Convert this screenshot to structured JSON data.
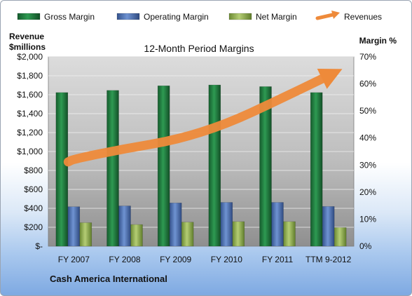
{
  "chart_data": {
    "type": "bar",
    "title": "12-Month Period Margins",
    "left_axis_title": [
      "Revenue",
      "$millions"
    ],
    "right_axis_title": "Margin %",
    "company": "Cash America International",
    "categories": [
      "FY 2007",
      "FY 2008",
      "FY 2009",
      "FY 2010",
      "FY 2011",
      "TTM 9-2012"
    ],
    "y_left": {
      "min": 0,
      "max": 2000,
      "ticks": [
        "$-",
        "$200",
        "$400",
        "$600",
        "$800",
        "$1,000",
        "$1,200",
        "$1,400",
        "$1,600",
        "$1,800",
        "$2,000"
      ]
    },
    "y_right": {
      "min": 0,
      "max": 70,
      "ticks": [
        "0%",
        "10%",
        "20%",
        "30%",
        "40%",
        "50%",
        "60%",
        "70%"
      ]
    },
    "series": [
      {
        "name": "Gross Margin",
        "axis": "right",
        "values": [
          56.8,
          57.6,
          59.3,
          59.6,
          59.0,
          56.8
        ],
        "color": "#1f7a3e"
      },
      {
        "name": "Operating Margin",
        "axis": "right",
        "values": [
          14.6,
          14.9,
          16.0,
          16.2,
          16.2,
          14.7
        ],
        "color": "#4a6fb5"
      },
      {
        "name": "Net Margin",
        "axis": "right",
        "values": [
          8.7,
          8.0,
          8.9,
          9.1,
          9.1,
          6.9
        ],
        "color": "#8fac4f"
      },
      {
        "name": "Revenues",
        "axis": "left",
        "type": "arrow",
        "values": [
          920,
          1030,
          1120,
          1290,
          1540,
          1800
        ],
        "color": "#ee8a3a"
      }
    ],
    "grid": true,
    "legend": "top"
  }
}
